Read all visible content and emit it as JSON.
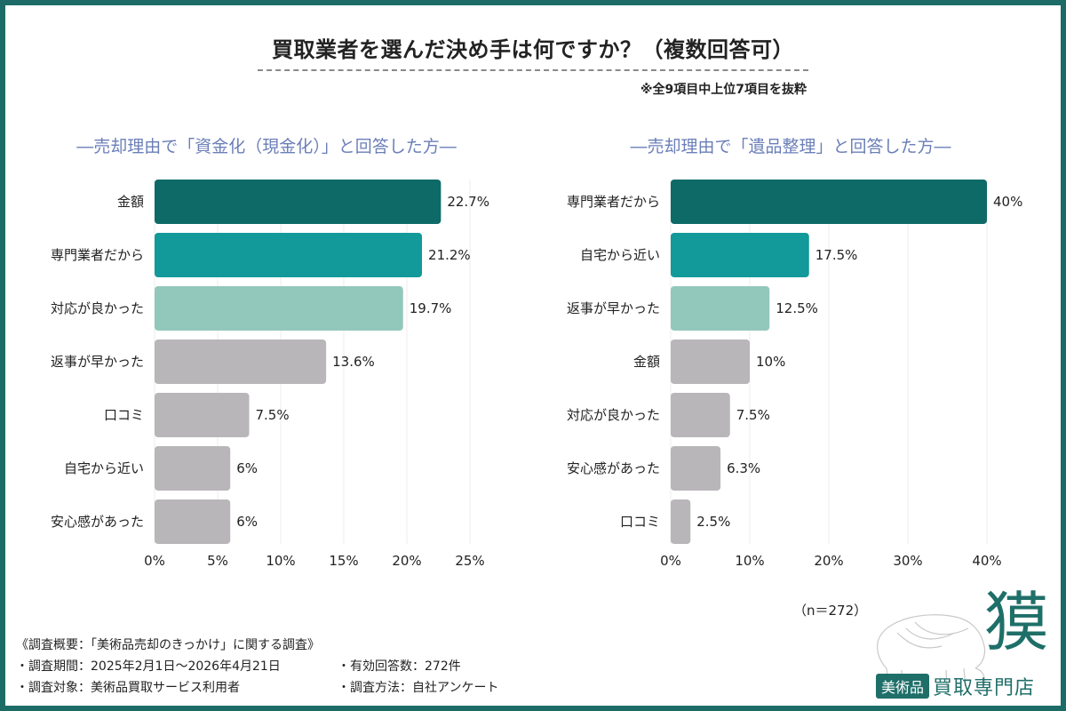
{
  "title": "買取業者を選んだ決め手は何ですか？（複数回答可）",
  "note": "※全9項目中上位7項目を抜粋",
  "chart_data": [
    {
      "type": "bar",
      "orientation": "horizontal",
      "subtitle": "―売却理由で「資金化（現金化）」と回答した方―",
      "categories": [
        "金額",
        "専門業者だから",
        "対応が良かった",
        "返事が早かった",
        "口コミ",
        "自宅から近い",
        "安心感があった"
      ],
      "values": [
        22.7,
        21.2,
        19.7,
        13.6,
        7.5,
        6,
        6
      ],
      "value_labels": [
        "22.7%",
        "21.2%",
        "19.7%",
        "13.6%",
        "7.5%",
        "6%",
        "6%"
      ],
      "colors": [
        "#0e6a67",
        "#12999a",
        "#92c8bb",
        "#b9b6ba",
        "#b9b6ba",
        "#b9b6ba",
        "#b9b6ba"
      ],
      "xlim": [
        0,
        25
      ],
      "xticks": [
        "0%",
        "5%",
        "10%",
        "15%",
        "20%",
        "25%"
      ],
      "grid": true
    },
    {
      "type": "bar",
      "orientation": "horizontal",
      "subtitle": "―売却理由で「遺品整理」と回答した方―",
      "categories": [
        "専門業者だから",
        "自宅から近い",
        "返事が早かった",
        "金額",
        "対応が良かった",
        "安心感があった",
        "口コミ"
      ],
      "values": [
        40,
        17.5,
        12.5,
        10,
        7.5,
        6.3,
        2.5
      ],
      "value_labels": [
        "40%",
        "17.5%",
        "12.5%",
        "10%",
        "7.5%",
        "6.3%",
        "2.5%"
      ],
      "colors": [
        "#0e6a67",
        "#12999a",
        "#92c8bb",
        "#b9b6ba",
        "#b9b6ba",
        "#b9b6ba",
        "#b9b6ba"
      ],
      "xlim": [
        0,
        40
      ],
      "xticks": [
        "0%",
        "10%",
        "20%",
        "30%",
        "40%"
      ],
      "grid": true
    }
  ],
  "n_label": "（n＝272）",
  "survey": {
    "heading": "《調査概要：「美術品売却のきっかけ」に関する調査》",
    "period": "・調査期間：2025年2月1日〜2026年4月21日",
    "responses": "・有効回答数：272件",
    "target": "・調査対象：美術品買取サービス利用者",
    "method": "・調査方法：自社アンケート"
  },
  "logo": {
    "kanji": "獏",
    "badge": "美術品",
    "name": "買取専門店",
    "icon": "tapir-logo-icon"
  }
}
